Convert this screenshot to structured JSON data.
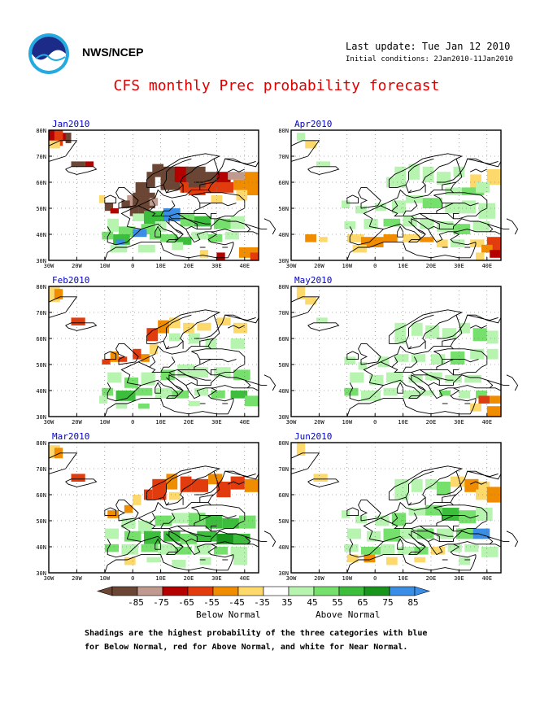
{
  "header": {
    "agency": "NWS/NCEP",
    "last_update": "Last update: Tue Jan 12 2010",
    "initial_conditions": "Initial conditions: 2Jan2010-11Jan2010",
    "title": "CFS monthly Prec probability forecast"
  },
  "panels": [
    {
      "month": "Jan2010",
      "pattern": "jan"
    },
    {
      "month": "Apr2010",
      "pattern": "apr"
    },
    {
      "month": "Feb2010",
      "pattern": "feb"
    },
    {
      "month": "May2010",
      "pattern": "may"
    },
    {
      "month": "Mar2010",
      "pattern": "mar"
    },
    {
      "month": "Jun2010",
      "pattern": "jun"
    }
  ],
  "axes": {
    "lat_labels": [
      "80N",
      "70N",
      "60N",
      "50N",
      "40N",
      "30N"
    ],
    "lon_labels": [
      "30W",
      "20W",
      "10W",
      "0",
      "10E",
      "20E",
      "30E",
      "40E"
    ]
  },
  "legend": {
    "ticks": [
      "-85",
      "-75",
      "-65",
      "-55",
      "-45",
      "-35",
      "35",
      "45",
      "55",
      "65",
      "75",
      "85"
    ],
    "below_label": "Below Normal",
    "above_label": "Above Normal",
    "colors": [
      "#6b4634",
      "#c09a8e",
      "#b50000",
      "#e23b0e",
      "#f08c00",
      "#fdd86a",
      "#ffffff",
      "#b6f4b0",
      "#75e06c",
      "#3cbe3c",
      "#18961c",
      "#3a8ee6"
    ]
  },
  "footnote": {
    "line1": "Shadings are the highest probability of the three categories with blue",
    "line2": "for Below Normal, red for Above Normal, and white for Near Normal."
  }
}
